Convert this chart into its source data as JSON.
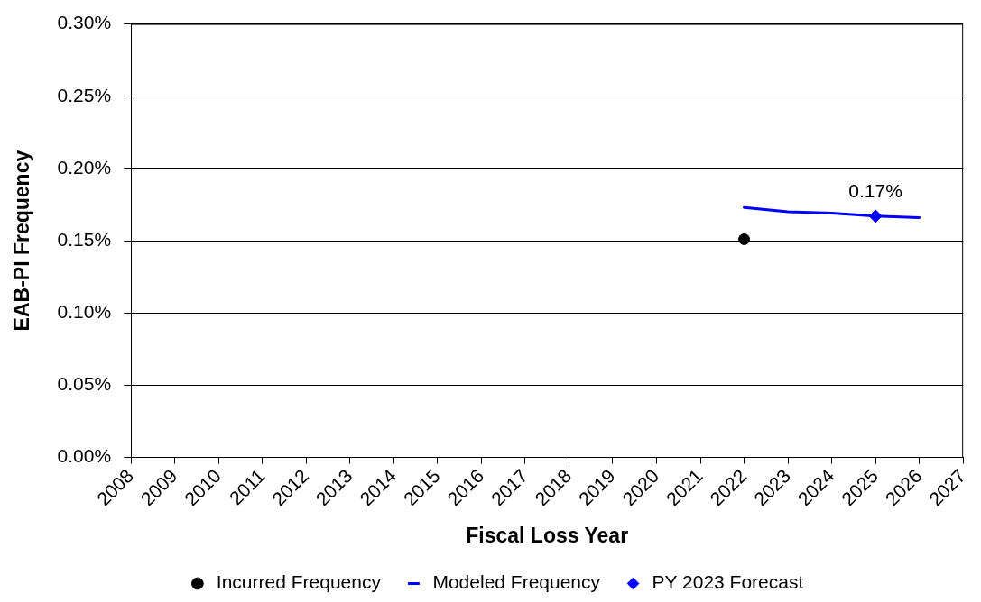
{
  "chart_data": {
    "type": "line",
    "xlabel": "Fiscal Loss Year",
    "ylabel": "EAB-PI Frequency",
    "xlim": [
      2008,
      2027
    ],
    "xticks": [
      2008,
      2009,
      2010,
      2011,
      2012,
      2013,
      2014,
      2015,
      2016,
      2017,
      2018,
      2019,
      2020,
      2021,
      2022,
      2023,
      2024,
      2025,
      2026,
      2027
    ],
    "ylim": [
      0,
      0.3
    ],
    "yticks": [
      {
        "value": 0,
        "label": "0.00%"
      },
      {
        "value": 0.05,
        "label": "0.05%"
      },
      {
        "value": 0.1,
        "label": "0.10%"
      },
      {
        "value": 0.15,
        "label": "0.15%"
      },
      {
        "value": 0.2,
        "label": "0.20%"
      },
      {
        "value": 0.25,
        "label": "0.25%"
      },
      {
        "value": 0.3,
        "label": "0.30%"
      }
    ],
    "grid": "y",
    "legend": "bottom",
    "series": [
      {
        "name": "Incurred Frequency",
        "type": "scatter",
        "marker": "circle",
        "color": "#000000",
        "x": [
          2022
        ],
        "values": [
          0.151
        ]
      },
      {
        "name": "Modeled Frequency",
        "marker": "none",
        "color": "#0000ff",
        "x": [
          2022,
          2023,
          2024,
          2025,
          2026
        ],
        "values": [
          0.173,
          0.17,
          0.169,
          0.167,
          0.166
        ]
      },
      {
        "name": "PY 2023 Forecast",
        "type": "scatter",
        "marker": "diamond",
        "color": "#0000ff",
        "x": [
          2025
        ],
        "values": [
          0.167
        ],
        "value_labels": [
          "0.17%"
        ]
      }
    ]
  }
}
